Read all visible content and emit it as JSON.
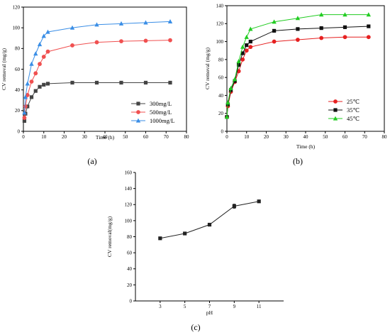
{
  "chart_data": [
    {
      "type": "line",
      "panel_label": "(a)",
      "xlabel": "Time (h)",
      "ylabel": "CV removal (mg/g)",
      "xlim": [
        0,
        80
      ],
      "ylim": [
        0,
        120
      ],
      "xticks": [
        0,
        10,
        20,
        30,
        40,
        50,
        60,
        70,
        80
      ],
      "yticks": [
        0,
        20,
        40,
        60,
        80,
        100,
        120
      ],
      "legend_position": "lower-right",
      "series": [
        {
          "name": "300mg/L",
          "marker": "square",
          "color": "#444444",
          "x": [
            0.5,
            1,
            2,
            4,
            6,
            8,
            10,
            12,
            24,
            36,
            48,
            60,
            72
          ],
          "y": [
            10,
            17,
            24,
            33,
            39,
            43,
            45,
            46,
            47,
            47,
            47,
            47,
            47
          ]
        },
        {
          "name": "500mg/L",
          "marker": "circle",
          "color": "#f05050",
          "x": [
            0.5,
            1,
            2,
            4,
            6,
            8,
            10,
            12,
            24,
            36,
            48,
            60,
            72
          ],
          "y": [
            13,
            24,
            35,
            48,
            56,
            65,
            72,
            77,
            83,
            86,
            87,
            87.5,
            88
          ]
        },
        {
          "name": "1000mg/L",
          "marker": "triangle",
          "color": "#3a8ee6",
          "x": [
            0.5,
            1,
            2,
            4,
            6,
            8,
            10,
            12,
            24,
            36,
            48,
            60,
            72
          ],
          "y": [
            18,
            33,
            46,
            65,
            75,
            84,
            92,
            96,
            100,
            103,
            104,
            105,
            106
          ]
        }
      ]
    },
    {
      "type": "line",
      "panel_label": "(b)",
      "xlabel": "Time (h)",
      "ylabel": "CV removal (mg/g)",
      "xlim": [
        0,
        80
      ],
      "ylim": [
        0,
        140
      ],
      "xticks": [
        0,
        10,
        20,
        30,
        40,
        50,
        60,
        70,
        80
      ],
      "yticks": [
        0,
        20,
        40,
        60,
        80,
        100,
        120,
        140
      ],
      "legend_position": "lower-right",
      "series": [
        {
          "name": "25℃",
          "marker": "circle",
          "color": "#e62020",
          "x": [
            0,
            0.5,
            2,
            4,
            6,
            8,
            10,
            12,
            24,
            36,
            48,
            60,
            72
          ],
          "y": [
            16,
            28,
            44,
            55,
            67,
            80,
            90,
            94,
            100,
            102,
            104,
            105,
            105
          ]
        },
        {
          "name": "35℃",
          "marker": "square",
          "color": "#111111",
          "x": [
            0,
            0.5,
            2,
            4,
            6,
            8,
            10,
            12,
            24,
            36,
            48,
            60,
            72
          ],
          "y": [
            16,
            30,
            46,
            56,
            74,
            87,
            96,
            100,
            112,
            114,
            115,
            116,
            117
          ]
        },
        {
          "name": "45℃",
          "marker": "triangle",
          "color": "#22cc22",
          "x": [
            0,
            0.5,
            2,
            4,
            6,
            8,
            10,
            12,
            24,
            36,
            48,
            60,
            72
          ],
          "y": [
            16,
            32,
            48,
            58,
            78,
            94,
            105,
            114,
            122,
            126,
            130,
            130,
            130
          ]
        }
      ]
    },
    {
      "type": "line",
      "panel_label": "(c)",
      "xlabel": "pH",
      "ylabel": "CV removal(mg/g)",
      "xlim": [
        1,
        13
      ],
      "ylim": [
        0,
        160
      ],
      "xticks": [
        3,
        5,
        7,
        9,
        11
      ],
      "yticks": [
        0,
        20,
        40,
        60,
        80,
        100,
        120,
        140,
        160
      ],
      "legend_position": "none",
      "series": [
        {
          "marker": "square",
          "color": "#222222",
          "x": [
            3,
            5,
            7,
            9,
            11
          ],
          "y": [
            78,
            84,
            95,
            118,
            124
          ],
          "err": [
            1.5,
            1.5,
            1.5,
            2.5,
            1.5
          ]
        }
      ]
    }
  ]
}
